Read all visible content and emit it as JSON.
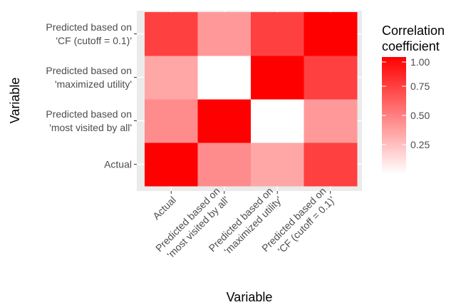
{
  "chart_data": {
    "type": "heatmap",
    "title": "",
    "xlabel": "Variable",
    "ylabel": "Variable",
    "x_categories": [
      [
        "Actual"
      ],
      [
        "Predicted based on",
        "'most visited by all'"
      ],
      [
        "Predicted based on",
        "'maximized utility'"
      ],
      [
        "Predicted based on",
        "'CF (cutoff = 0.1)'"
      ]
    ],
    "y_categories": [
      [
        "Actual"
      ],
      [
        "Predicted based on",
        "'most visited by all'"
      ],
      [
        "Predicted based on",
        "'maximized utility'"
      ],
      [
        "Predicted based on",
        "'CF (cutoff = 0.1)'"
      ]
    ],
    "values": [
      [
        1.0,
        0.45,
        0.35,
        0.75
      ],
      [
        0.45,
        1.0,
        0.0,
        0.4
      ],
      [
        0.35,
        0.0,
        1.0,
        0.75
      ],
      [
        0.75,
        0.4,
        0.75,
        1.0
      ]
    ],
    "legend": {
      "title_lines": [
        "Correlation",
        "coefficient"
      ],
      "ticks": [
        0.25,
        0.5,
        0.75,
        1.0
      ],
      "tick_labels": [
        "0.25",
        "0.50",
        "0.75",
        "1.00"
      ],
      "range": [
        0,
        1
      ],
      "low_color": "#ffffff",
      "high_color": "#ff0000"
    },
    "grid": true,
    "legend_position": "right",
    "panel_background": "#ebebeb",
    "gridline_color": "#ffffff"
  }
}
